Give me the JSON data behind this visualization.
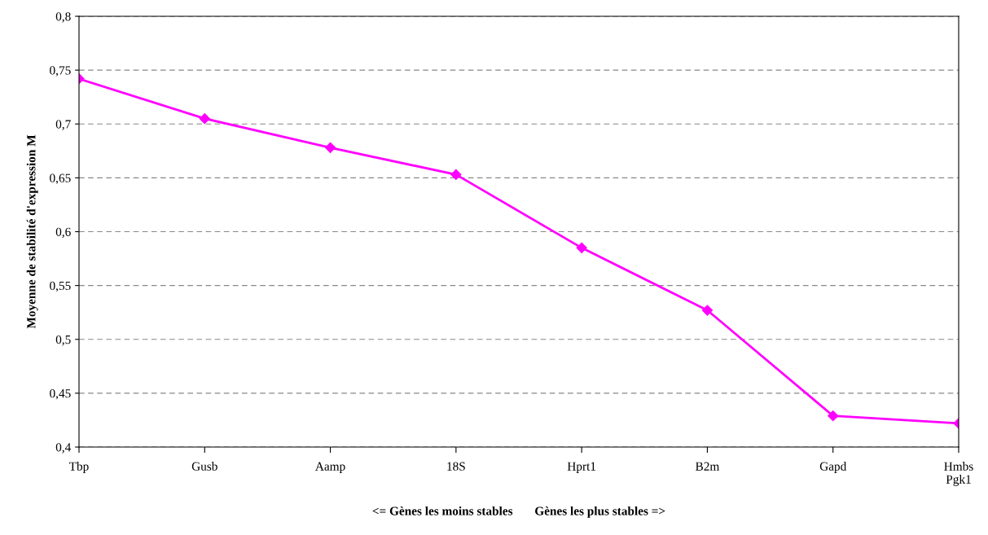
{
  "chart_data": {
    "type": "line",
    "xlabel": "<= Gènes les moins stables       Gènes les plus stables =>",
    "ylabel": "Moyenne de stabilité d'expression M",
    "categories": [
      "Tbp",
      "Gusb",
      "Aamp",
      "18S",
      "Hprt1",
      "B2m",
      "Gapd",
      "Hmbs\nPgk1"
    ],
    "series": [
      {
        "color": "#ff00ff",
        "values": [
          0.742,
          0.705,
          0.678,
          0.653,
          0.585,
          0.527,
          0.429,
          0.422
        ]
      }
    ],
    "ylim": [
      0.4,
      0.8
    ],
    "yticks": [
      {
        "value": 0.4,
        "label": "0,4"
      },
      {
        "value": 0.45,
        "label": "0,45"
      },
      {
        "value": 0.5,
        "label": "0,5"
      },
      {
        "value": 0.55,
        "label": "0,55"
      },
      {
        "value": 0.6,
        "label": "0,6"
      },
      {
        "value": 0.65,
        "label": "0,65"
      },
      {
        "value": 0.7,
        "label": "0,7"
      },
      {
        "value": 0.75,
        "label": "0,75"
      },
      {
        "value": 0.8,
        "label": "0,8"
      }
    ],
    "grid": "y",
    "marker": "diamond",
    "line_style": "solid"
  }
}
